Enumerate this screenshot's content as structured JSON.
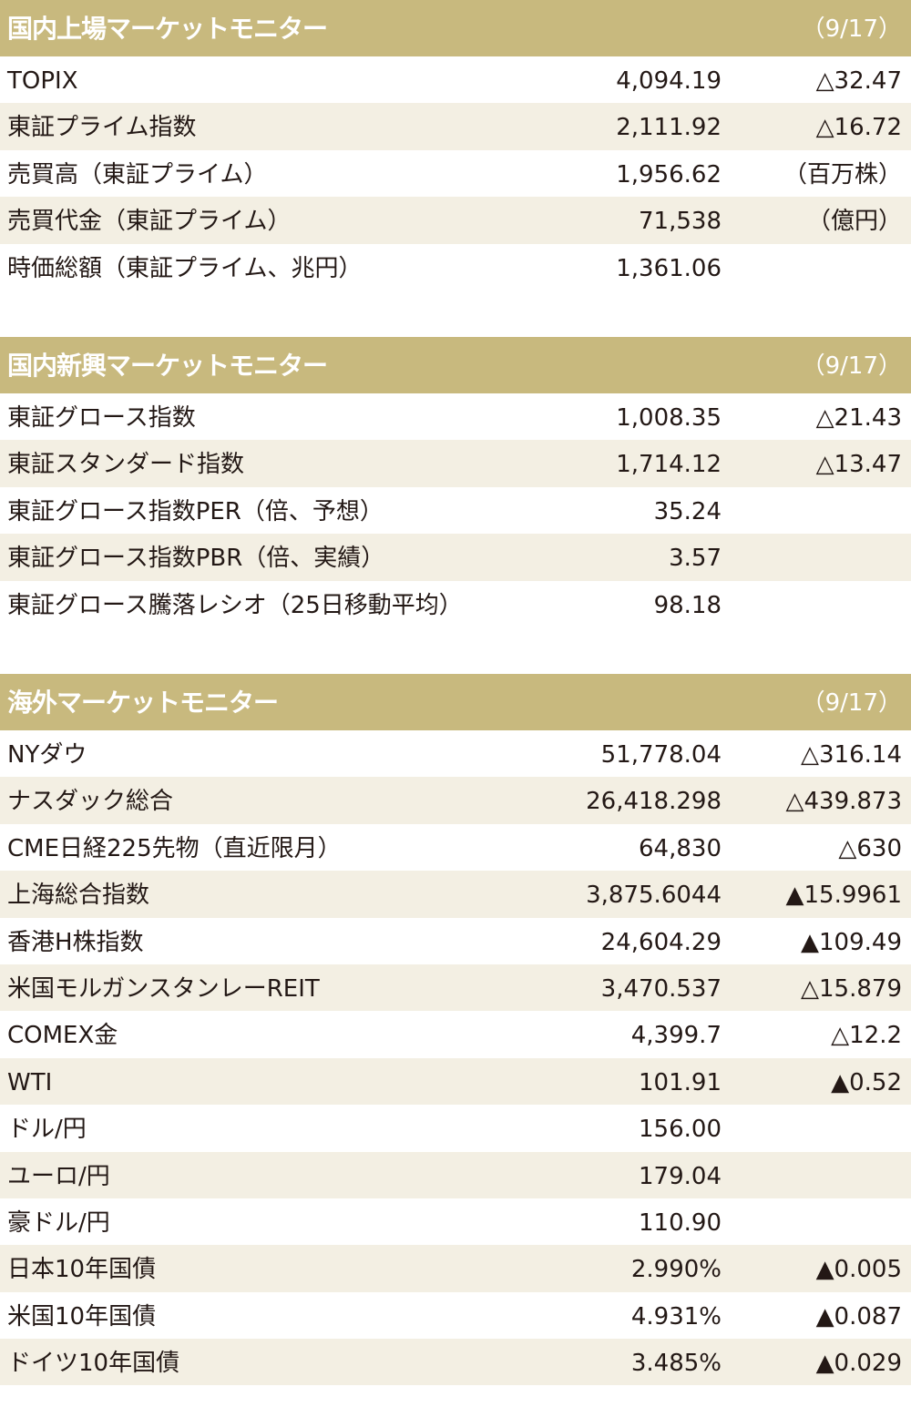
{
  "sections": [
    {
      "title": "国内上場マーケットモニター",
      "date": "（9/17）",
      "rows": [
        {
          "label": "TOPIX",
          "value": "4,094.19",
          "change": "△32.47"
        },
        {
          "label": "東証プライム指数",
          "value": "2,111.92",
          "change": "△16.72"
        },
        {
          "label": "売買高（東証プライム）",
          "value": "1,956.62",
          "change": "（百万株）"
        },
        {
          "label": "売買代金（東証プライム）",
          "value": "71,538",
          "change": "（億円）"
        },
        {
          "label": "時価総額（東証プライム、兆円）",
          "value": "1,361.06"
        }
      ]
    },
    {
      "title": "国内新興マーケットモニター",
      "date": "（9/17）",
      "rows": [
        {
          "label": "東証グロース指数",
          "value": "1,008.35",
          "change": "△21.43"
        },
        {
          "label": "東証スタンダード指数",
          "value": "1,714.12",
          "change": "△13.47"
        },
        {
          "label": "東証グロース指数PER（倍、予想）",
          "value": "35.24"
        },
        {
          "label": "東証グロース指数PBR（倍、実績）",
          "value": "3.57"
        },
        {
          "label": "東証グロース騰落レシオ（25日移動平均）",
          "value": "98.18"
        }
      ]
    },
    {
      "title": "海外マーケットモニター",
      "date": "（9/17）",
      "rows": [
        {
          "label": "NYダウ",
          "value": "51,778.04",
          "change": "△316.14"
        },
        {
          "label": "ナスダック総合",
          "value": "26,418.298",
          "change": "△439.873"
        },
        {
          "label": "CME日経225先物（直近限月）",
          "value": "64,830",
          "change": "△630"
        },
        {
          "label": "上海総合指数",
          "value": "3,875.6044",
          "change": "▲15.9961"
        },
        {
          "label": "香港H株指数",
          "value": "24,604.29",
          "change": "▲109.49"
        },
        {
          "label": "米国モルガンスタンレーREIT",
          "value": "3,470.537",
          "change": "△15.879"
        },
        {
          "label": "COMEX金",
          "value": "4,399.7",
          "change": "△12.2"
        },
        {
          "label": "WTI",
          "value": "101.91",
          "change": "▲0.52"
        },
        {
          "label": "ドル/円",
          "value": "156.00"
        },
        {
          "label": "ユーロ/円",
          "value": "179.04"
        },
        {
          "label": "豪ドル/円",
          "value": "110.90"
        },
        {
          "label": "日本10年国債",
          "value": "2.990%",
          "change": "▲0.005"
        },
        {
          "label": "米国10年国債",
          "value": "4.931%",
          "change": "▲0.087"
        },
        {
          "label": "ドイツ10年国債",
          "value": "3.485%",
          "change": "▲0.029"
        }
      ]
    }
  ]
}
